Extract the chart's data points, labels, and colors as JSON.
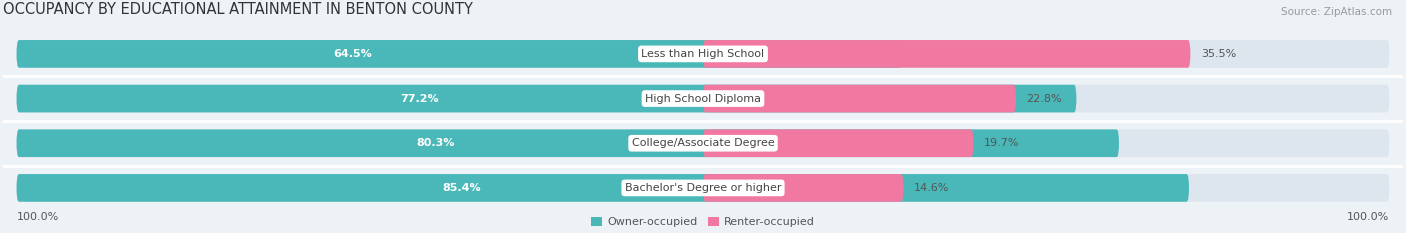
{
  "title": "OCCUPANCY BY EDUCATIONAL ATTAINMENT IN BENTON COUNTY",
  "source": "Source: ZipAtlas.com",
  "categories": [
    "Less than High School",
    "High School Diploma",
    "College/Associate Degree",
    "Bachelor's Degree or higher"
  ],
  "owner_pct": [
    64.5,
    77.2,
    80.3,
    85.4
  ],
  "renter_pct": [
    35.5,
    22.8,
    19.7,
    14.6
  ],
  "owner_color": "#4ab8b8",
  "renter_color": "#f178a0",
  "bg_color": "#edf2f7",
  "bar_bg_color": "#dde5ef",
  "title_fontsize": 10.5,
  "source_fontsize": 7.5,
  "label_fontsize": 8,
  "bar_label_fontsize": 8,
  "axis_label_fontsize": 8,
  "legend_fontsize": 8,
  "left_axis_label": "100.0%",
  "right_axis_label": "100.0%"
}
